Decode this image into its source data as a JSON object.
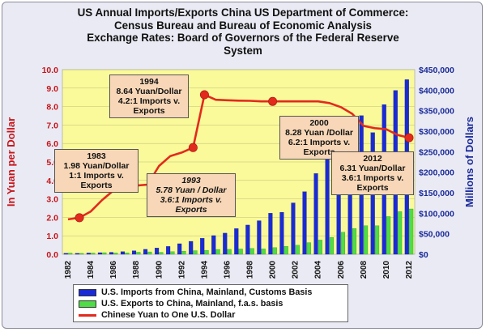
{
  "title_lines": [
    "US Annual Imports/Exports China US Department of Commerce:",
    "Census Bureau and Bureau of Economic Analysis",
    "Exchange Rates: Board of Governors of the Federal Reserve",
    "System"
  ],
  "chart_data": {
    "type": "bar",
    "years": [
      1982,
      1983,
      1984,
      1985,
      1986,
      1987,
      1988,
      1989,
      1990,
      1991,
      1992,
      1993,
      1994,
      1995,
      1996,
      1997,
      1998,
      1999,
      2000,
      2001,
      2002,
      2003,
      2004,
      2005,
      2006,
      2007,
      2008,
      2009,
      2010,
      2011,
      2012
    ],
    "x_tick_labels": [
      "1982",
      "1984",
      "1986",
      "1988",
      "1990",
      "1992",
      "1994",
      "1996",
      "1998",
      "2000",
      "2002",
      "2004",
      "2006",
      "2008",
      "2010",
      "2012"
    ],
    "ylabel_left": "In Yuan per Dollar",
    "ylabel_right": "Millions of Dollars",
    "ylim_left": [
      0,
      10
    ],
    "ylim_right": [
      0,
      450000
    ],
    "y_ticks_left": [
      "0.0",
      "1.0",
      "2.0",
      "3.0",
      "4.0",
      "5.0",
      "6.0",
      "7.0",
      "8.0",
      "9.0",
      "10.0"
    ],
    "y_ticks_right": [
      "$0",
      "$50,000",
      "$100,000",
      "$150,000",
      "$200,000",
      "$250,000",
      "$300,000",
      "$350,000",
      "$400,000",
      "$450,000"
    ],
    "series": [
      {
        "name": "U.S. Imports from China, Mainland, Customs Basis",
        "axis": "right",
        "kind": "bar",
        "color": "#1a2bd6",
        "values": [
          2300,
          2200,
          3100,
          3900,
          4800,
          6300,
          8500,
          12000,
          15200,
          19000,
          25700,
          31500,
          38800,
          45500,
          51500,
          62600,
          71200,
          81800,
          100000,
          102300,
          125200,
          152400,
          196700,
          243500,
          287800,
          321400,
          337800,
          296400,
          364900,
          399300,
          425600
        ]
      },
      {
        "name": "U.S. Exports to China, Mainland, f.a.s. basis",
        "axis": "right",
        "kind": "bar",
        "color": "#4fdc46",
        "values": [
          2900,
          2200,
          3000,
          3900,
          3100,
          3500,
          5000,
          5800,
          4800,
          6300,
          7400,
          8800,
          9300,
          11800,
          12000,
          12900,
          14300,
          13100,
          16200,
          19200,
          22100,
          28400,
          34700,
          41200,
          53700,
          62900,
          69700,
          69500,
          91900,
          103900,
          110500
        ]
      },
      {
        "name": "Chinese Yuan to One U.S. Dollar",
        "axis": "left",
        "kind": "line",
        "color": "#e22a1d",
        "values": [
          1.89,
          1.98,
          2.32,
          2.94,
          3.45,
          3.72,
          3.72,
          3.77,
          4.78,
          5.32,
          5.51,
          5.78,
          8.64,
          8.37,
          8.34,
          8.32,
          8.31,
          8.28,
          8.28,
          8.28,
          8.28,
          8.28,
          8.28,
          8.19,
          7.97,
          7.61,
          6.95,
          6.83,
          6.77,
          6.46,
          6.31
        ],
        "markers": [
          {
            "year": 1983,
            "value": 1.98
          },
          {
            "year": 1993,
            "value": 5.78
          },
          {
            "year": 1994,
            "value": 8.64
          },
          {
            "year": 2000,
            "value": 8.28
          },
          {
            "year": 2012,
            "value": 6.31
          }
        ]
      }
    ],
    "legend_placement": "bottom",
    "plot_background": "#fafa9a",
    "annotations": [
      {
        "id": "a1983",
        "italic": false,
        "lines": [
          "1983",
          "1.98 Yuan/Dollar",
          "1:1 Imports v.",
          "Exports"
        ]
      },
      {
        "id": "a1994",
        "italic": false,
        "lines": [
          "1994",
          "8.64 Yuan/Dollar",
          "4.2:1 Imports v.",
          "Exports"
        ]
      },
      {
        "id": "a1993",
        "italic": true,
        "lines": [
          "1993",
          "5.78 Yuan / Dollar",
          "3.6:1 Imports v.",
          "Exports"
        ]
      },
      {
        "id": "a2000",
        "italic": false,
        "lines": [
          "2000",
          "8.28 Yuan /Dollar",
          "6.2:1 Imports v.",
          "Exports"
        ]
      },
      {
        "id": "a2012",
        "italic": false,
        "lines": [
          "2012",
          "6.31 Yuan/Dollar",
          "3.6:1 Imports v.",
          "Exports"
        ]
      }
    ]
  }
}
